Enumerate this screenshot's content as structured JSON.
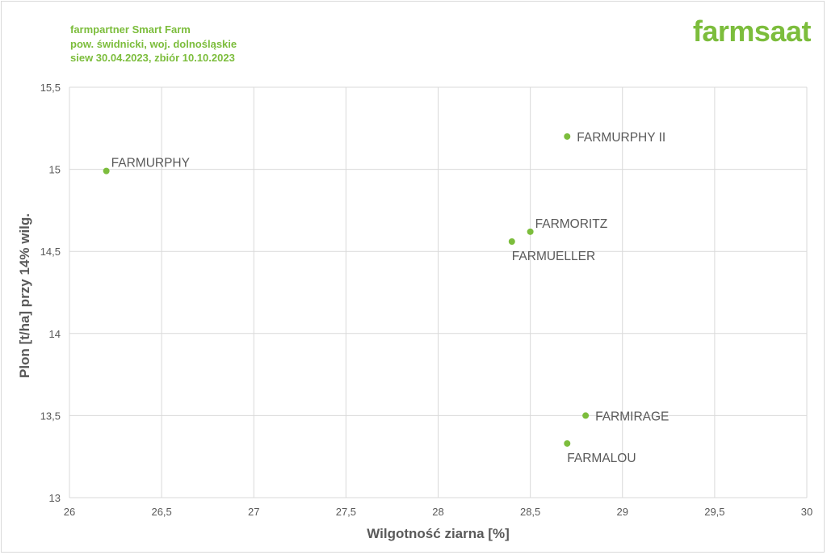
{
  "header": {
    "line1": "farmpartner Smart Farm",
    "line2": "pow. świdnicki, woj. dolnośląskie",
    "line3": "siew 30.04.2023, zbiór 10.10.2023"
  },
  "logo": {
    "text": "farmsaat"
  },
  "colors": {
    "accent": "#7cbd3c",
    "point": "#7cbd3c",
    "grid": "#d9d9d9",
    "text": "#595959"
  },
  "chart_data": {
    "type": "scatter",
    "title": "",
    "xlabel": "Wilgotność ziarna [%]",
    "ylabel": "Plon [t/ha] przy 14% wilg.",
    "xlim": [
      26,
      30
    ],
    "ylim": [
      13,
      15.5
    ],
    "x_ticks": [
      "26",
      "26,5",
      "27",
      "27,5",
      "28",
      "28,5",
      "29",
      "29,5",
      "30"
    ],
    "x_tick_values": [
      26,
      26.5,
      27,
      27.5,
      28,
      28.5,
      29,
      29.5,
      30
    ],
    "y_ticks": [
      "13",
      "13,5",
      "14",
      "14,5",
      "15",
      "15,5"
    ],
    "y_tick_values": [
      13,
      13.5,
      14,
      14.5,
      15,
      15.5
    ],
    "grid": true,
    "legend": "none",
    "points": [
      {
        "label": "FARMURPHY",
        "x": 26.2,
        "y": 14.99,
        "label_pos": "right-above"
      },
      {
        "label": "FARMURPHY II",
        "x": 28.7,
        "y": 15.2,
        "label_pos": "right"
      },
      {
        "label": "FARMORITZ",
        "x": 28.5,
        "y": 14.62,
        "label_pos": "right-above"
      },
      {
        "label": "FARMUELLER",
        "x": 28.4,
        "y": 14.56,
        "label_pos": "below"
      },
      {
        "label": "FARMIRAGE",
        "x": 28.8,
        "y": 13.5,
        "label_pos": "right"
      },
      {
        "label": "FARMALOU",
        "x": 28.7,
        "y": 13.33,
        "label_pos": "below"
      }
    ]
  }
}
